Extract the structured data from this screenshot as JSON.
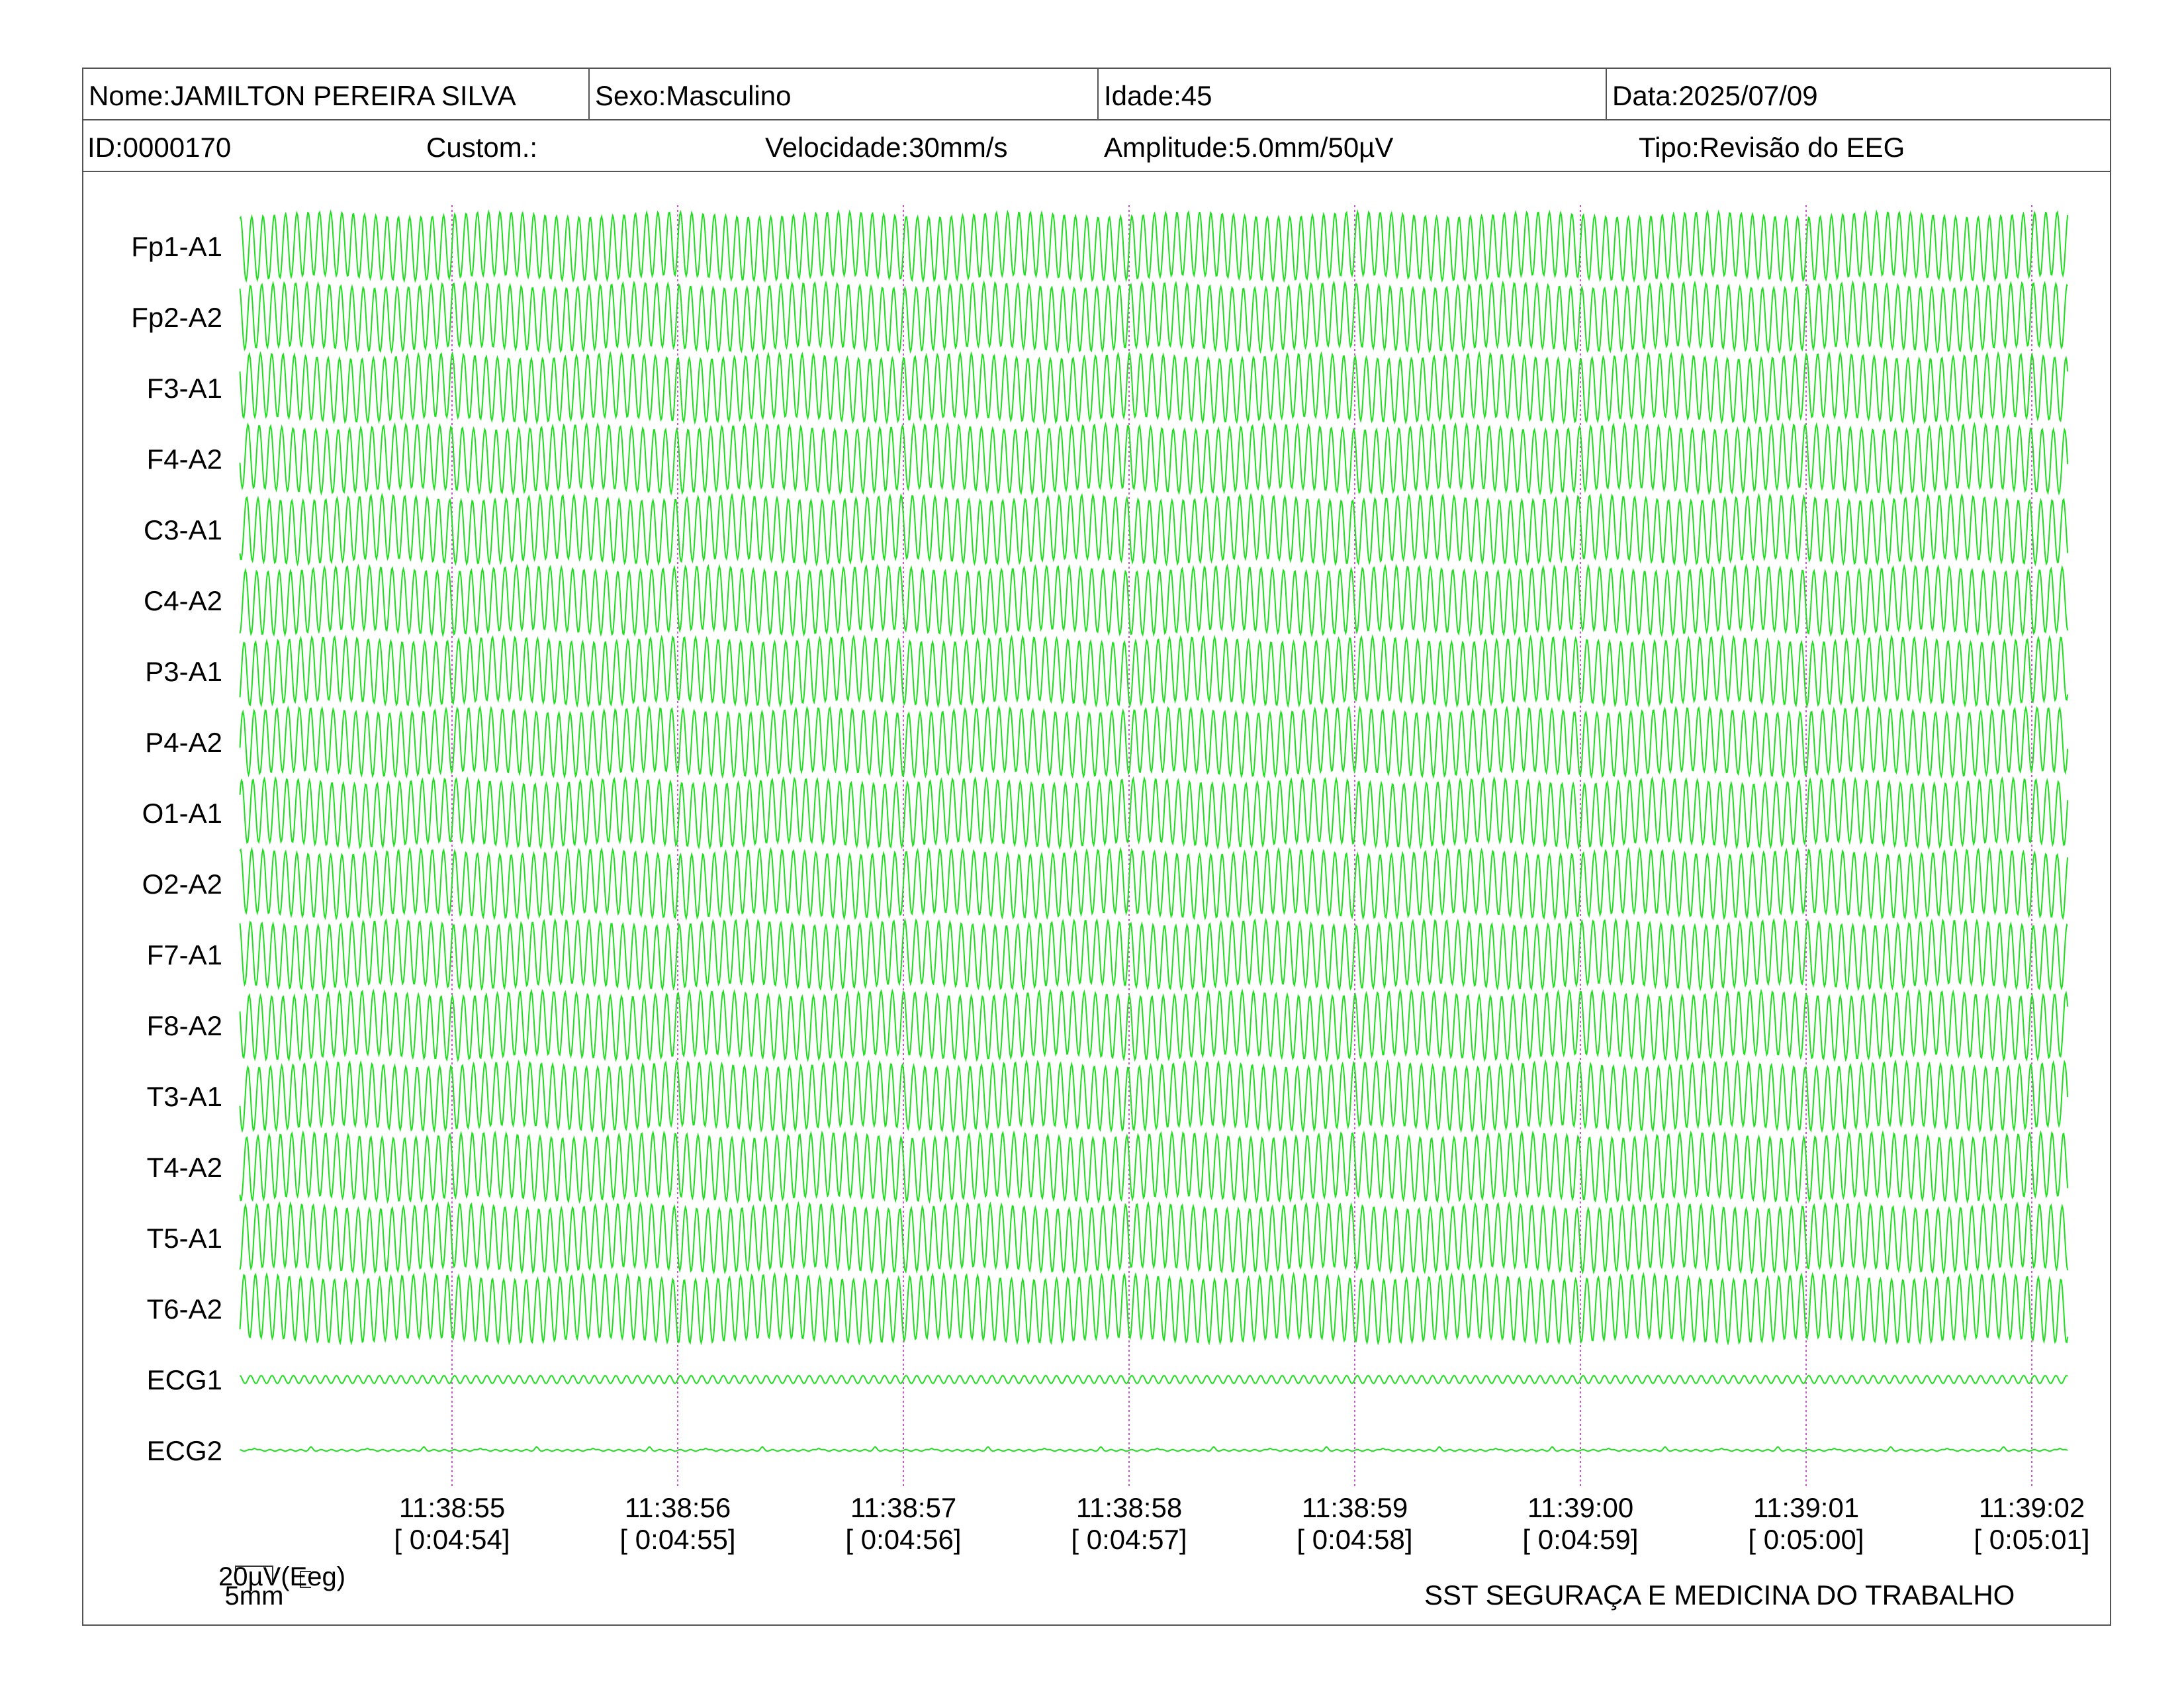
{
  "header": {
    "nome": "Nome:JAMILTON PEREIRA SILVA",
    "sexo": "Sexo:Masculino",
    "idade": "Idade:45",
    "data": "Data:2025/07/09",
    "id": "ID:0000170",
    "custom": "Custom.:",
    "velocidade": "Velocidade:30mm/s",
    "amplitude": "Amplitude:5.0mm/50µV",
    "tipo": "Tipo:Revisão do EEG"
  },
  "scale": {
    "time_label": "5mm",
    "amp_label": "20µV(Eeg)"
  },
  "footer": {
    "company": "SST SEGURAÇA E MEDICINA DO TRABALHO"
  },
  "colors": {
    "trace": "#22dd22",
    "marker": "#cc55cc",
    "border": "#555555"
  },
  "chart_data": {
    "type": "line",
    "title": "",
    "channels": [
      "Fp1-A1",
      "Fp2-A2",
      "F3-A1",
      "F4-A2",
      "C3-A1",
      "C4-A2",
      "P3-A1",
      "P4-A2",
      "O1-A1",
      "O2-A2",
      "F7-A1",
      "F8-A2",
      "T3-A1",
      "T4-A2",
      "T5-A1",
      "T6-A2",
      "ECG1",
      "ECG2"
    ],
    "time_markers": [
      {
        "clock": "11:38:55",
        "elapsed": "[ 0:04:54]"
      },
      {
        "clock": "11:38:56",
        "elapsed": "[ 0:04:55]"
      },
      {
        "clock": "11:38:57",
        "elapsed": "[ 0:04:56]"
      },
      {
        "clock": "11:38:58",
        "elapsed": "[ 0:04:57]"
      },
      {
        "clock": "11:38:59",
        "elapsed": "[ 0:04:58]"
      },
      {
        "clock": "11:39:00",
        "elapsed": "[ 0:04:59]"
      },
      {
        "clock": "11:39:01",
        "elapsed": "[ 0:05:00]"
      },
      {
        "clock": "11:39:02",
        "elapsed": "[ 0:05:01]"
      }
    ],
    "paper_speed_mm_s": 30,
    "sensitivity": "5.0mm/50µV",
    "eeg_cycles_per_second": 20,
    "ecg1_cycles_per_second": 21,
    "ecg2_beats_per_second": 4,
    "seconds_before_first_marker": 0.94,
    "seconds_after_last_marker": 0.16
  }
}
